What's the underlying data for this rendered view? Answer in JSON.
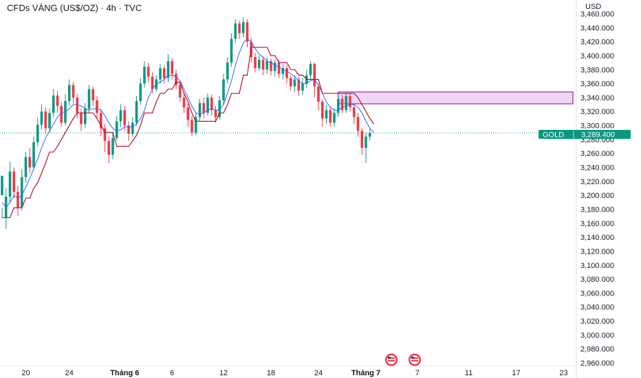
{
  "header": {
    "title": "CFDs VÀNG (US$/OZ) · 4h · TVC",
    "currency": "USD"
  },
  "price_tag": {
    "symbol": "GOLD",
    "value": "3,289.400"
  },
  "colors": {
    "up": "#089981",
    "down": "#f23645",
    "fast_line": "#2962ff",
    "slow_line": "#b2102f",
    "zone_fill": "#e8c9f0",
    "zone_border": "#9c27b0",
    "tag_bg": "#089981"
  },
  "chart_data": {
    "type": "candlestick",
    "title": "CFDs VÀNG (US$/OZ) · 4h · TVC",
    "ylim": [
      2950,
      3465
    ],
    "y_ticks": [
      "3,460.000",
      "3,440.000",
      "3,420.000",
      "3,400.000",
      "3,380.000",
      "3,360.000",
      "3,340.000",
      "3,320.000",
      "3,300.000",
      "3,280.000",
      "3,260.000",
      "3,240.000",
      "3,220.000",
      "3,200.000",
      "3,180.000",
      "3,160.000",
      "3,140.000",
      "3,120.000",
      "3,100.000",
      "3,080.000",
      "3,060.000",
      "3,040.000",
      "3,020.000",
      "3,000.000",
      "2,980.000",
      "2,960.000"
    ],
    "x_ticks": [
      {
        "label": "20",
        "slot": 6,
        "bold": false
      },
      {
        "label": "24",
        "slot": 17,
        "bold": false
      },
      {
        "label": "Tháng 6",
        "slot": 31,
        "bold": true
      },
      {
        "label": "6",
        "slot": 43,
        "bold": false
      },
      {
        "label": "12",
        "slot": 56,
        "bold": false
      },
      {
        "label": "18",
        "slot": 68,
        "bold": false
      },
      {
        "label": "24",
        "slot": 80,
        "bold": false
      },
      {
        "label": "Tháng 7",
        "slot": 92,
        "bold": true
      },
      {
        "label": "7",
        "slot": 105,
        "bold": false
      },
      {
        "label": "11",
        "slot": 118,
        "bold": false
      },
      {
        "label": "17",
        "slot": 130,
        "bold": false
      },
      {
        "label": "23",
        "slot": 142,
        "bold": false
      }
    ],
    "last_price": 3289.4,
    "resistance_zone": {
      "x_start_slot": 85,
      "top": 3348,
      "bottom": 3331
    },
    "candles": [
      [
        3200,
        3228,
        3182,
        3168
      ],
      [
        3168,
        3198,
        3210,
        3152
      ],
      [
        3198,
        3234,
        3248,
        3190
      ],
      [
        3234,
        3205,
        3240,
        3196
      ],
      [
        3205,
        3183,
        3214,
        3170
      ],
      [
        3183,
        3226,
        3238,
        3178
      ],
      [
        3226,
        3255,
        3262,
        3218
      ],
      [
        3255,
        3240,
        3268,
        3232
      ],
      [
        3240,
        3276,
        3284,
        3236
      ],
      [
        3276,
        3301,
        3312,
        3270
      ],
      [
        3301,
        3320,
        3330,
        3294
      ],
      [
        3320,
        3296,
        3326,
        3288
      ],
      [
        3296,
        3318,
        3324,
        3290
      ],
      [
        3318,
        3343,
        3352,
        3312
      ],
      [
        3343,
        3328,
        3350,
        3318
      ],
      [
        3328,
        3304,
        3334,
        3298
      ],
      [
        3304,
        3335,
        3345,
        3300
      ],
      [
        3335,
        3358,
        3366,
        3328
      ],
      [
        3358,
        3340,
        3362,
        3332
      ],
      [
        3340,
        3318,
        3345,
        3310
      ],
      [
        3318,
        3302,
        3324,
        3292
      ],
      [
        3302,
        3324,
        3332,
        3296
      ],
      [
        3324,
        3352,
        3358,
        3318
      ],
      [
        3352,
        3336,
        3356,
        3328
      ],
      [
        3336,
        3318,
        3342,
        3310
      ],
      [
        3318,
        3296,
        3324,
        3285
      ],
      [
        3296,
        3278,
        3302,
        3262
      ],
      [
        3278,
        3258,
        3284,
        3246
      ],
      [
        3258,
        3282,
        3290,
        3252
      ],
      [
        3282,
        3306,
        3314,
        3278
      ],
      [
        3306,
        3322,
        3330,
        3298
      ],
      [
        3322,
        3300,
        3328,
        3292
      ],
      [
        3300,
        3288,
        3306,
        3278
      ],
      [
        3288,
        3304,
        3312,
        3284
      ],
      [
        3304,
        3335,
        3342,
        3300
      ],
      [
        3335,
        3360,
        3368,
        3330
      ],
      [
        3360,
        3384,
        3392,
        3354
      ],
      [
        3384,
        3370,
        3390,
        3362
      ],
      [
        3370,
        3352,
        3376,
        3346
      ],
      [
        3352,
        3366,
        3372,
        3348
      ],
      [
        3366,
        3382,
        3388,
        3360
      ],
      [
        3382,
        3368,
        3386,
        3360
      ],
      [
        3368,
        3392,
        3402,
        3362
      ],
      [
        3392,
        3374,
        3396,
        3366
      ],
      [
        3374,
        3358,
        3380,
        3352
      ],
      [
        3358,
        3340,
        3364,
        3334
      ],
      [
        3340,
        3326,
        3346,
        3318
      ],
      [
        3326,
        3308,
        3332,
        3298
      ],
      [
        3308,
        3290,
        3314,
        3285
      ],
      [
        3290,
        3312,
        3318,
        3286
      ],
      [
        3312,
        3332,
        3338,
        3306
      ],
      [
        3332,
        3318,
        3340,
        3310
      ],
      [
        3318,
        3340,
        3346,
        3314
      ],
      [
        3340,
        3322,
        3344,
        3314
      ],
      [
        3322,
        3312,
        3328,
        3304
      ],
      [
        3312,
        3336,
        3342,
        3308
      ],
      [
        3336,
        3366,
        3374,
        3330
      ],
      [
        3366,
        3390,
        3398,
        3360
      ],
      [
        3390,
        3424,
        3432,
        3384
      ],
      [
        3424,
        3446,
        3452,
        3418
      ],
      [
        3446,
        3432,
        3450,
        3424
      ],
      [
        3432,
        3448,
        3455,
        3426
      ],
      [
        3448,
        3420,
        3452,
        3412
      ],
      [
        3420,
        3398,
        3426,
        3390
      ],
      [
        3398,
        3382,
        3404,
        3376
      ],
      [
        3382,
        3394,
        3400,
        3378
      ],
      [
        3394,
        3380,
        3398,
        3372
      ],
      [
        3380,
        3392,
        3398,
        3374
      ],
      [
        3392,
        3378,
        3396,
        3372
      ],
      [
        3378,
        3390,
        3394,
        3370
      ],
      [
        3390,
        3374,
        3394,
        3368
      ],
      [
        3374,
        3382,
        3388,
        3366
      ],
      [
        3382,
        3368,
        3386,
        3360
      ],
      [
        3368,
        3356,
        3372,
        3350
      ],
      [
        3356,
        3366,
        3372,
        3348
      ],
      [
        3366,
        3350,
        3370,
        3342
      ],
      [
        3350,
        3360,
        3368,
        3344
      ],
      [
        3360,
        3372,
        3380,
        3354
      ],
      [
        3372,
        3388,
        3392,
        3366
      ],
      [
        3388,
        3356,
        3390,
        3340
      ],
      [
        3356,
        3334,
        3360,
        3322
      ],
      [
        3334,
        3310,
        3338,
        3298
      ],
      [
        3310,
        3322,
        3330,
        3302
      ],
      [
        3322,
        3304,
        3326,
        3298
      ],
      [
        3304,
        3318,
        3324,
        3298
      ],
      [
        3318,
        3338,
        3342,
        3312
      ],
      [
        3338,
        3322,
        3344,
        3318
      ],
      [
        3322,
        3342,
        3348,
        3318
      ],
      [
        3342,
        3326,
        3346,
        3320
      ],
      [
        3326,
        3312,
        3330,
        3302
      ],
      [
        3312,
        3292,
        3318,
        3284
      ],
      [
        3292,
        3268,
        3296,
        3258
      ],
      [
        3268,
        3284,
        3290,
        3246
      ],
      [
        3284,
        3289.4,
        3295,
        3278
      ]
    ],
    "fast_line": [
      3190,
      3182,
      3190,
      3200,
      3196,
      3200,
      3212,
      3224,
      3238,
      3252,
      3268,
      3282,
      3292,
      3302,
      3312,
      3318,
      3320,
      3324,
      3330,
      3330,
      3328,
      3324,
      3322,
      3324,
      3324,
      3322,
      3314,
      3304,
      3296,
      3292,
      3294,
      3298,
      3298,
      3298,
      3302,
      3310,
      3322,
      3340,
      3352,
      3360,
      3362,
      3366,
      3372,
      3372,
      3370,
      3364,
      3352,
      3340,
      3328,
      3318,
      3316,
      3318,
      3322,
      3324,
      3322,
      3322,
      3330,
      3346,
      3364,
      3386,
      3404,
      3418,
      3424,
      3420,
      3410,
      3402,
      3398,
      3392,
      3390,
      3386,
      3384,
      3380,
      3378,
      3374,
      3370,
      3364,
      3360,
      3360,
      3364,
      3366,
      3358,
      3346,
      3334,
      3326,
      3322,
      3322,
      3326,
      3328,
      3330,
      3330,
      3326,
      3318,
      3306,
      3296,
      3290
    ],
    "slow_line": [
      3168,
      3168,
      3168,
      3182,
      3182,
      3182,
      3196,
      3196,
      3210,
      3218,
      3232,
      3246,
      3262,
      3262,
      3270,
      3280,
      3290,
      3300,
      3310,
      3318,
      3318,
      3318,
      3318,
      3318,
      3310,
      3300,
      3290,
      3290,
      3290,
      3270,
      3270,
      3270,
      3270,
      3278,
      3286,
      3300,
      3318,
      3318,
      3318,
      3334,
      3346,
      3346,
      3352,
      3352,
      3362,
      3362,
      3346,
      3334,
      3318,
      3306,
      3306,
      3306,
      3306,
      3306,
      3306,
      3318,
      3318,
      3330,
      3346,
      3346,
      3346,
      3372,
      3372,
      3412,
      3412,
      3412,
      3412,
      3412,
      3400,
      3400,
      3390,
      3390,
      3390,
      3380,
      3380,
      3372,
      3372,
      3366,
      3366,
      3366,
      3366,
      3346,
      3346,
      3346,
      3346,
      3346,
      3346,
      3346,
      3346,
      3346,
      3340,
      3330,
      3320,
      3310,
      3302
    ]
  }
}
